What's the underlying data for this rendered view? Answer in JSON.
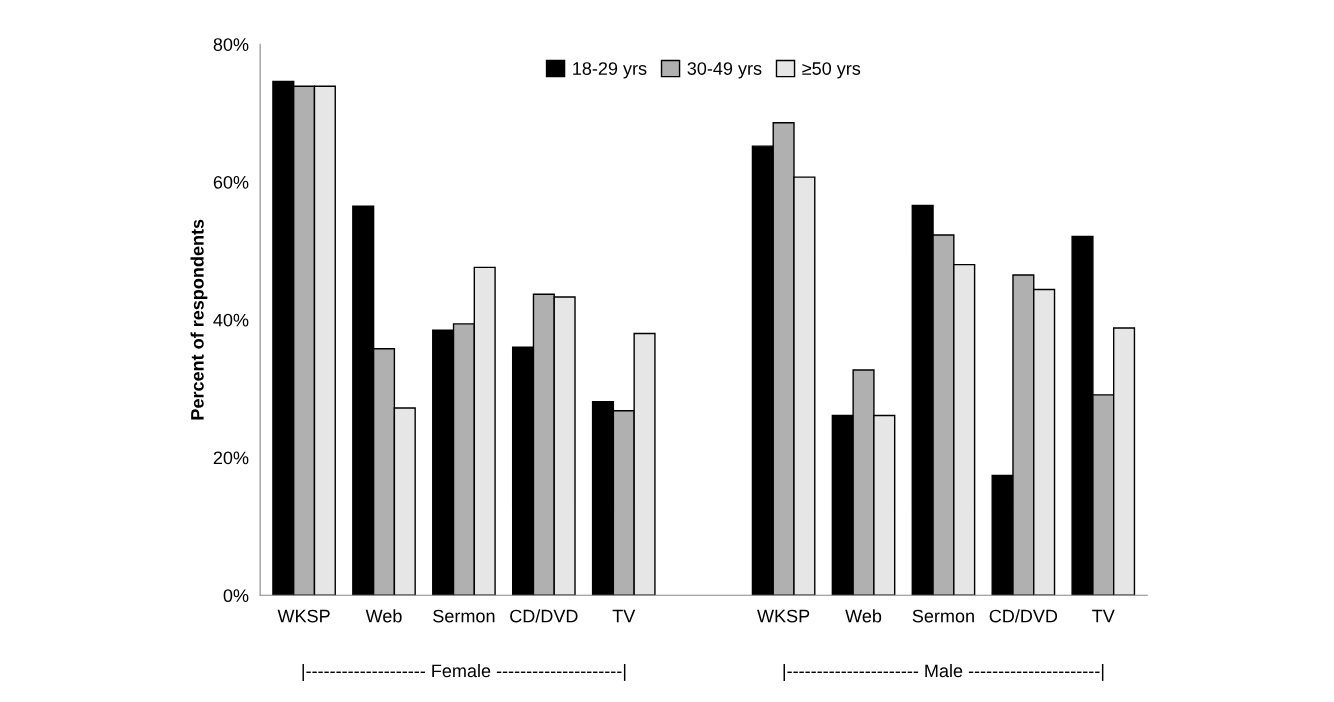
{
  "chart_data": {
    "type": "bar",
    "ylabel": "Percent of respondents",
    "categories": [
      "WKSP",
      "Web",
      "Sermon",
      "CD/DVD",
      "TV",
      null,
      "WKSP",
      "Web",
      "Sermon",
      "CD/DVD",
      "TV"
    ],
    "series": [
      {
        "name": "18-29 yrs",
        "color": "#000000",
        "values": [
          74.6,
          56.5,
          38.5,
          36.0,
          28.1,
          null,
          65.2,
          26.1,
          56.6,
          17.4,
          52.1
        ]
      },
      {
        "name": "30-49 yrs",
        "color": "#b0b0b0",
        "values": [
          73.9,
          35.8,
          39.4,
          43.7,
          26.8,
          null,
          68.6,
          32.7,
          52.3,
          46.5,
          29.1
        ]
      },
      {
        "name": "≥50 yrs",
        "color": "#e6e6e6",
        "values": [
          73.9,
          27.2,
          47.6,
          43.3,
          38.0,
          null,
          60.7,
          26.1,
          48.0,
          44.4,
          38.8
        ]
      }
    ],
    "ylim": [
      0,
      80
    ],
    "yticks": [
      {
        "value": 0,
        "label": "0%"
      },
      {
        "value": 20,
        "label": "20%"
      },
      {
        "value": 40,
        "label": "40%"
      },
      {
        "value": 60,
        "label": "60%"
      },
      {
        "value": 80,
        "label": "80%"
      }
    ],
    "annotations": [
      "|-------------------- Female ---------------------|",
      "|---------------------- Male ----------------------|"
    ],
    "legend": "top",
    "grid": false
  }
}
